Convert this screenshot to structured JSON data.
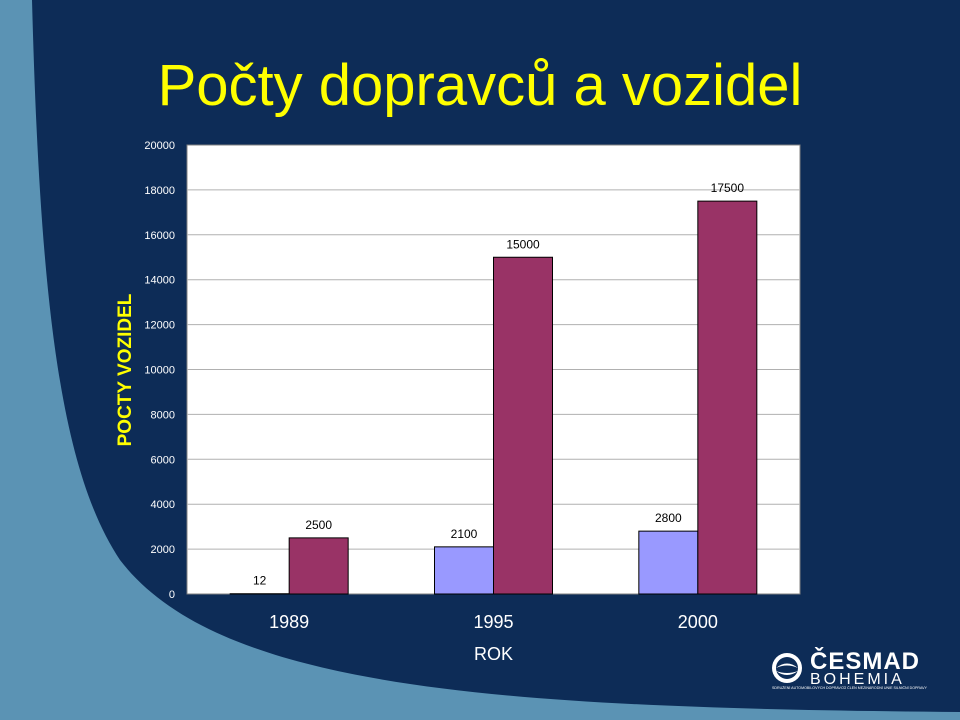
{
  "slide": {
    "title": "Počty dopravců a vozidel",
    "colors": {
      "background": "#0d2c57",
      "accent_curve": "#5b93b4",
      "title": "#ffff00",
      "plot_area": "#ffffff"
    }
  },
  "chart_data": {
    "type": "bar",
    "title": "Počty dopravců a vozidel",
    "xlabel": "ROK",
    "ylabel": "POCTY VOZIDEL",
    "categories": [
      "1989",
      "1995",
      "2000"
    ],
    "ylim": [
      0,
      20000
    ],
    "yticks": [
      0,
      2000,
      4000,
      6000,
      8000,
      10000,
      12000,
      14000,
      16000,
      18000,
      20000
    ],
    "grid": true,
    "legend": "none",
    "series": [
      {
        "color": "#9999ff",
        "values": [
          12,
          2100,
          2800
        ],
        "labels": [
          "12",
          "2100",
          "2800"
        ]
      },
      {
        "color": "#993366",
        "values": [
          2500,
          15000,
          17500
        ],
        "labels": [
          "2500",
          "15000",
          "17500"
        ]
      }
    ]
  },
  "logo": {
    "brand": "ČESMAD",
    "sub": "BOHEMIA",
    "tagline": "SDRUŽENÍ AUTOMOBILOVÝCH DOPRAVCŮ ČLEN MEZINÁRODNÍ UNIE SILNIČNÍ DOPRAVY",
    "icon": "cesmad-emblem-icon"
  }
}
